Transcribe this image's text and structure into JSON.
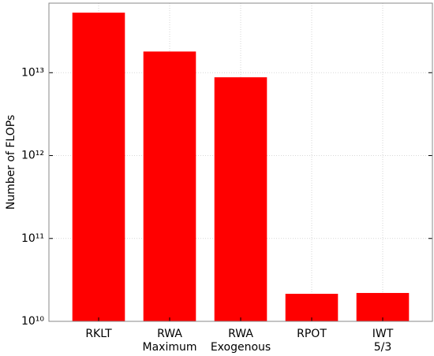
{
  "chart_data": {
    "type": "bar",
    "ylabel": "Number of FLOPs",
    "categories": [
      "RKLT",
      "RWA\nMaximum",
      "RWA\nExogenous",
      "RPOT",
      "IWT\n5/3"
    ],
    "values": [
      53000000000000,
      18000000000000,
      8800000000000,
      21500000000,
      22000000000
    ],
    "color": "#ff0000",
    "log_scale": true,
    "ylim": [
      10000000000,
      69000000000000
    ],
    "yticks": [
      {
        "value": 10000000000,
        "label": "10¹⁰"
      },
      {
        "value": 100000000000,
        "label": "10¹¹"
      },
      {
        "value": 1000000000000,
        "label": "10¹²"
      },
      {
        "value": 10000000000000,
        "label": "10¹³"
      }
    ],
    "grid": true
  }
}
